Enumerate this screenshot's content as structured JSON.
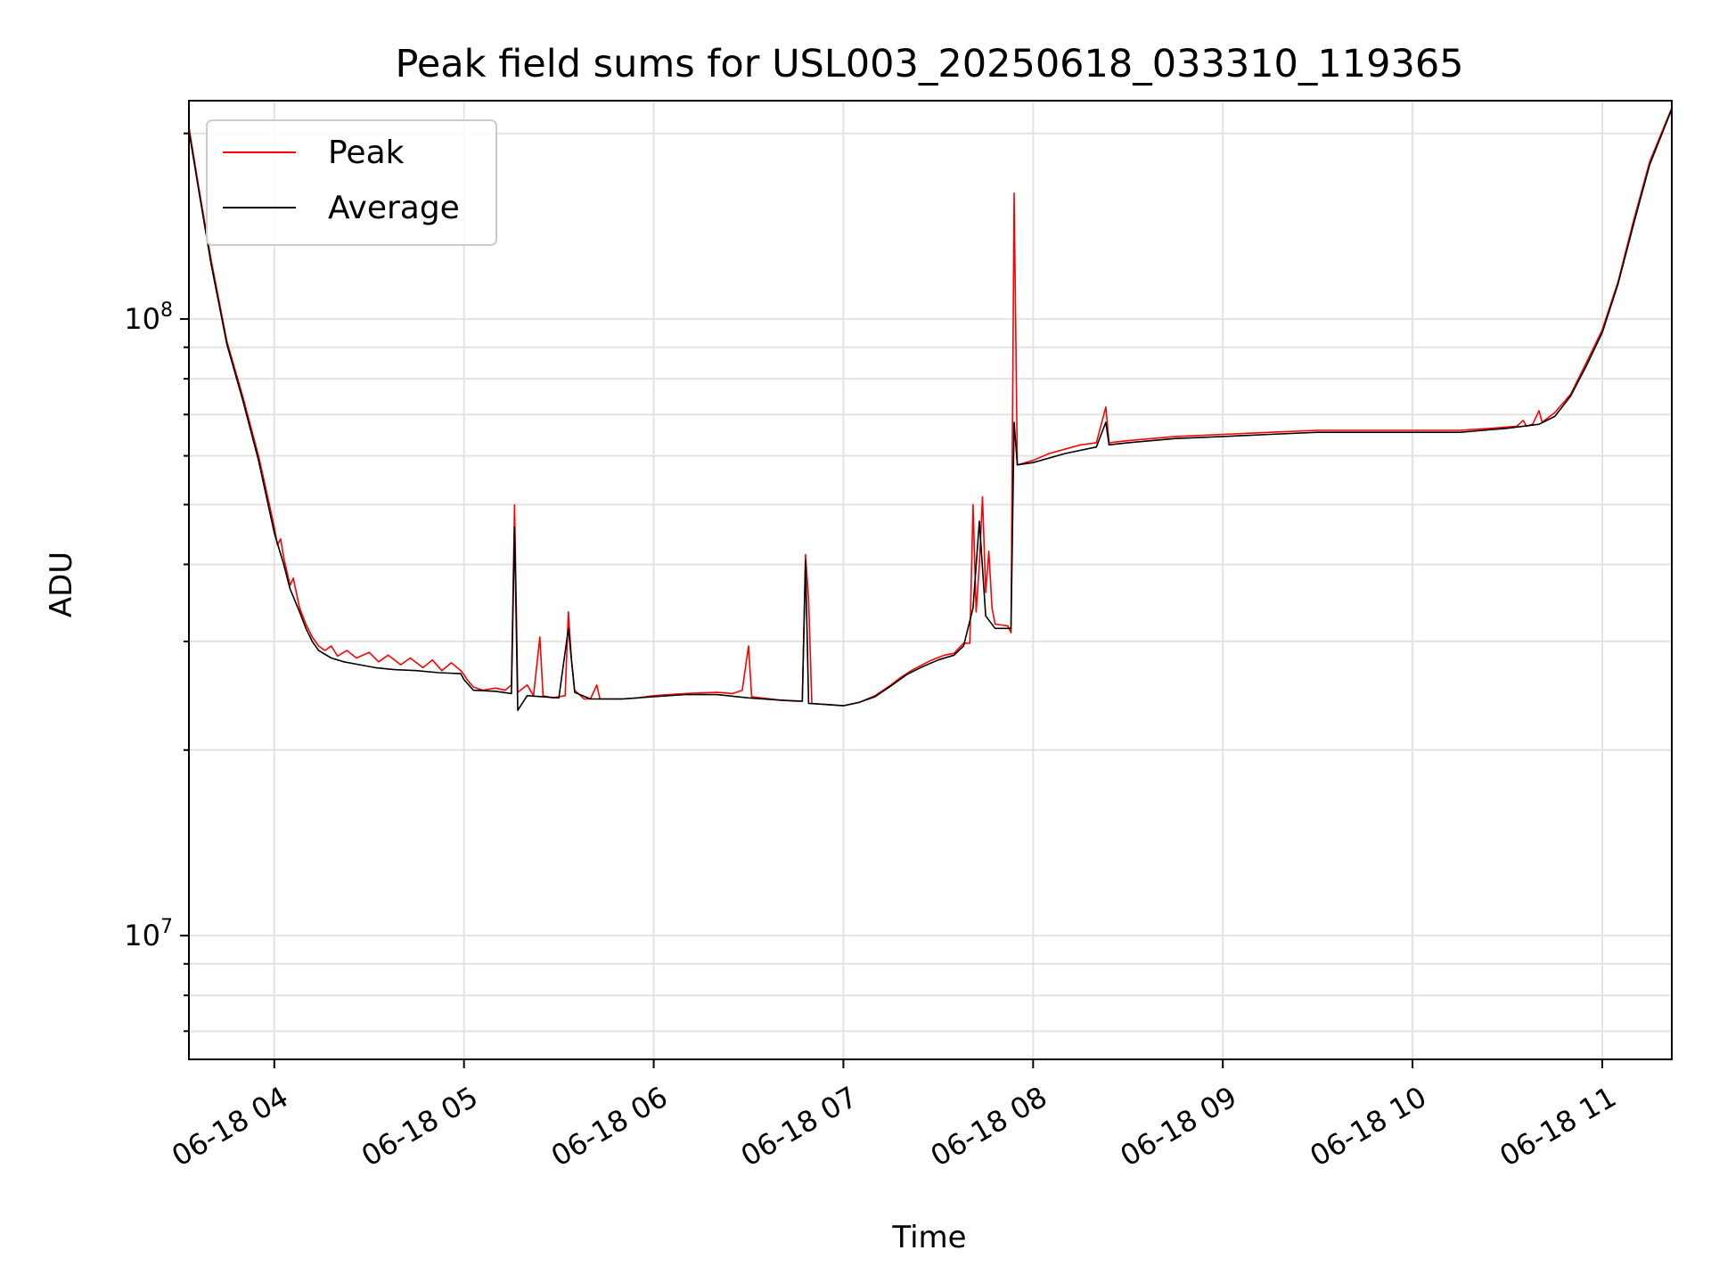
{
  "chart_data": {
    "type": "line",
    "title": "Peak field sums for USL003_20250618_033310_119365",
    "xlabel": "Time",
    "ylabel": "ADU",
    "xlim": [
      "2025-06-18 03:33",
      "2025-06-18 11:22"
    ],
    "ylim": [
      6300000,
      226000000
    ],
    "yscale": "log",
    "grid": true,
    "legend": "top-left",
    "x_ticks": [
      "06-18 04",
      "06-18 05",
      "06-18 06",
      "06-18 07",
      "06-18 08",
      "06-18 09",
      "06-18 10",
      "06-18 11"
    ],
    "y_ticks": [
      {
        "base": "10",
        "exp": "7",
        "value": 10000000
      },
      {
        "base": "10",
        "exp": "8",
        "value": 100000000
      }
    ],
    "series": [
      {
        "name": "Peak",
        "color": "#ff0000",
        "points": [
          [
            "03:33",
            205000000
          ],
          [
            "03:36",
            165000000
          ],
          [
            "03:40",
            125000000
          ],
          [
            "03:45",
            92000000
          ],
          [
            "03:50",
            75000000
          ],
          [
            "03:55",
            60000000
          ],
          [
            "03:57",
            54000000
          ],
          [
            "04:00",
            46000000
          ],
          [
            "04:01",
            43000000
          ],
          [
            "04:02",
            44000000
          ],
          [
            "04:03",
            41000000
          ],
          [
            "04:05",
            37000000
          ],
          [
            "04:06",
            38000000
          ],
          [
            "04:08",
            34000000
          ],
          [
            "04:10",
            32000000
          ],
          [
            "04:12",
            30500000
          ],
          [
            "04:14",
            29500000
          ],
          [
            "04:16",
            29000000
          ],
          [
            "04:18",
            29500000
          ],
          [
            "04:20",
            28400000
          ],
          [
            "04:23",
            29000000
          ],
          [
            "04:26",
            28200000
          ],
          [
            "04:30",
            28800000
          ],
          [
            "04:33",
            27800000
          ],
          [
            "04:36",
            28500000
          ],
          [
            "04:40",
            27500000
          ],
          [
            "04:43",
            28200000
          ],
          [
            "04:47",
            27200000
          ],
          [
            "04:50",
            28000000
          ],
          [
            "04:53",
            26900000
          ],
          [
            "04:56",
            27700000
          ],
          [
            "04:59",
            26900000
          ],
          [
            "05:00",
            26500000
          ],
          [
            "05:01",
            26000000
          ],
          [
            "05:03",
            25300000
          ],
          [
            "05:06",
            25000000
          ],
          [
            "05:10",
            25200000
          ],
          [
            "05:13",
            25000000
          ],
          [
            "05:15",
            25500000
          ],
          [
            "05:16",
            50000000
          ],
          [
            "05:17",
            24800000
          ],
          [
            "05:20",
            25500000
          ],
          [
            "05:22",
            24500000
          ],
          [
            "05:24",
            30500000
          ],
          [
            "05:25",
            24500000
          ],
          [
            "05:28",
            24300000
          ],
          [
            "05:32",
            24500000
          ],
          [
            "05:33",
            33500000
          ],
          [
            "05:34",
            28000000
          ],
          [
            "05:35",
            25000000
          ],
          [
            "05:38",
            24200000
          ],
          [
            "05:40",
            24200000
          ],
          [
            "05:42",
            25500000
          ],
          [
            "05:43",
            24200000
          ],
          [
            "05:50",
            24200000
          ],
          [
            "05:55",
            24300000
          ],
          [
            "06:00",
            24500000
          ],
          [
            "06:10",
            24700000
          ],
          [
            "06:20",
            24800000
          ],
          [
            "06:25",
            24700000
          ],
          [
            "06:28",
            25000000
          ],
          [
            "06:30",
            29500000
          ],
          [
            "06:31",
            24400000
          ],
          [
            "06:40",
            24100000
          ],
          [
            "06:45",
            24000000
          ],
          [
            "06:47",
            24000000
          ],
          [
            "06:48",
            41500000
          ],
          [
            "06:49",
            35000000
          ],
          [
            "06:50",
            23800000
          ],
          [
            "06:55",
            23700000
          ],
          [
            "07:00",
            23600000
          ],
          [
            "07:05",
            23900000
          ],
          [
            "07:10",
            24500000
          ],
          [
            "07:15",
            25500000
          ],
          [
            "07:18",
            26200000
          ],
          [
            "07:22",
            27000000
          ],
          [
            "07:25",
            27500000
          ],
          [
            "07:28",
            28000000
          ],
          [
            "07:32",
            28500000
          ],
          [
            "07:35",
            28700000
          ],
          [
            "07:38",
            29800000
          ],
          [
            "07:40",
            29800000
          ],
          [
            "07:41",
            50000000
          ],
          [
            "07:42",
            33500000
          ],
          [
            "07:43",
            40000000
          ],
          [
            "07:44",
            51500000
          ],
          [
            "07:45",
            36000000
          ],
          [
            "07:46",
            42000000
          ],
          [
            "07:47",
            34000000
          ],
          [
            "07:48",
            32000000
          ],
          [
            "07:52",
            31800000
          ],
          [
            "07:53",
            31000000
          ],
          [
            "07:54",
            160000000
          ],
          [
            "07:55",
            58000000
          ],
          [
            "08:00",
            59000000
          ],
          [
            "08:05",
            60500000
          ],
          [
            "08:10",
            61500000
          ],
          [
            "08:15",
            62500000
          ],
          [
            "08:20",
            63000000
          ],
          [
            "08:23",
            72000000
          ],
          [
            "08:24",
            63000000
          ],
          [
            "08:30",
            63500000
          ],
          [
            "08:45",
            64500000
          ],
          [
            "09:00",
            65000000
          ],
          [
            "09:15",
            65500000
          ],
          [
            "09:30",
            66000000
          ],
          [
            "09:45",
            66000000
          ],
          [
            "10:00",
            66000000
          ],
          [
            "10:15",
            66000000
          ],
          [
            "10:25",
            66500000
          ],
          [
            "10:33",
            67000000
          ],
          [
            "10:35",
            68500000
          ],
          [
            "10:36",
            67000000
          ],
          [
            "10:38",
            67500000
          ],
          [
            "10:40",
            71000000
          ],
          [
            "10:41",
            68000000
          ],
          [
            "10:45",
            70500000
          ],
          [
            "10:50",
            75500000
          ],
          [
            "10:55",
            85000000
          ],
          [
            "11:00",
            96000000
          ],
          [
            "11:05",
            115000000
          ],
          [
            "11:10",
            145000000
          ],
          [
            "11:15",
            180000000
          ],
          [
            "11:22",
            220000000
          ]
        ]
      },
      {
        "name": "Average",
        "color": "#000000",
        "points": [
          [
            "03:33",
            202000000
          ],
          [
            "03:36",
            163000000
          ],
          [
            "03:40",
            123000000
          ],
          [
            "03:45",
            91000000
          ],
          [
            "03:50",
            74000000
          ],
          [
            "03:55",
            59000000
          ],
          [
            "04:00",
            45000000
          ],
          [
            "04:03",
            40000000
          ],
          [
            "04:05",
            36500000
          ],
          [
            "04:08",
            33500000
          ],
          [
            "04:10",
            31500000
          ],
          [
            "04:12",
            30000000
          ],
          [
            "04:14",
            29000000
          ],
          [
            "04:18",
            28200000
          ],
          [
            "04:22",
            27800000
          ],
          [
            "04:27",
            27500000
          ],
          [
            "04:32",
            27200000
          ],
          [
            "04:38",
            27000000
          ],
          [
            "04:45",
            26900000
          ],
          [
            "04:52",
            26700000
          ],
          [
            "04:59",
            26600000
          ],
          [
            "05:00",
            26000000
          ],
          [
            "05:03",
            25000000
          ],
          [
            "05:10",
            24900000
          ],
          [
            "05:15",
            24700000
          ],
          [
            "05:16",
            46000000
          ],
          [
            "05:17",
            23200000
          ],
          [
            "05:20",
            24500000
          ],
          [
            "05:30",
            24300000
          ],
          [
            "05:33",
            31500000
          ],
          [
            "05:35",
            24800000
          ],
          [
            "05:40",
            24200000
          ],
          [
            "05:50",
            24200000
          ],
          [
            "06:00",
            24400000
          ],
          [
            "06:10",
            24600000
          ],
          [
            "06:20",
            24600000
          ],
          [
            "06:30",
            24300000
          ],
          [
            "06:40",
            24100000
          ],
          [
            "06:47",
            24000000
          ],
          [
            "06:48",
            40500000
          ],
          [
            "06:49",
            23800000
          ],
          [
            "06:55",
            23700000
          ],
          [
            "07:00",
            23600000
          ],
          [
            "07:05",
            23900000
          ],
          [
            "07:10",
            24400000
          ],
          [
            "07:15",
            25400000
          ],
          [
            "07:20",
            26500000
          ],
          [
            "07:25",
            27300000
          ],
          [
            "07:30",
            28000000
          ],
          [
            "07:35",
            28500000
          ],
          [
            "07:38",
            29500000
          ],
          [
            "07:41",
            34000000
          ],
          [
            "07:43",
            47000000
          ],
          [
            "07:45",
            33000000
          ],
          [
            "07:48",
            31500000
          ],
          [
            "07:53",
            31500000
          ],
          [
            "07:54",
            68000000
          ],
          [
            "07:55",
            58000000
          ],
          [
            "08:00",
            58500000
          ],
          [
            "08:10",
            60500000
          ],
          [
            "08:20",
            62000000
          ],
          [
            "08:23",
            68000000
          ],
          [
            "08:24",
            62500000
          ],
          [
            "08:30",
            63000000
          ],
          [
            "08:45",
            64000000
          ],
          [
            "09:00",
            64500000
          ],
          [
            "09:15",
            65000000
          ],
          [
            "09:30",
            65500000
          ],
          [
            "09:45",
            65500000
          ],
          [
            "10:00",
            65500000
          ],
          [
            "10:15",
            65500000
          ],
          [
            "10:30",
            66500000
          ],
          [
            "10:40",
            67500000
          ],
          [
            "10:45",
            69500000
          ],
          [
            "10:50",
            75000000
          ],
          [
            "10:55",
            84000000
          ],
          [
            "11:00",
            95000000
          ],
          [
            "11:05",
            114000000
          ],
          [
            "11:10",
            143000000
          ],
          [
            "11:15",
            178000000
          ],
          [
            "11:22",
            219000000
          ]
        ]
      }
    ]
  }
}
